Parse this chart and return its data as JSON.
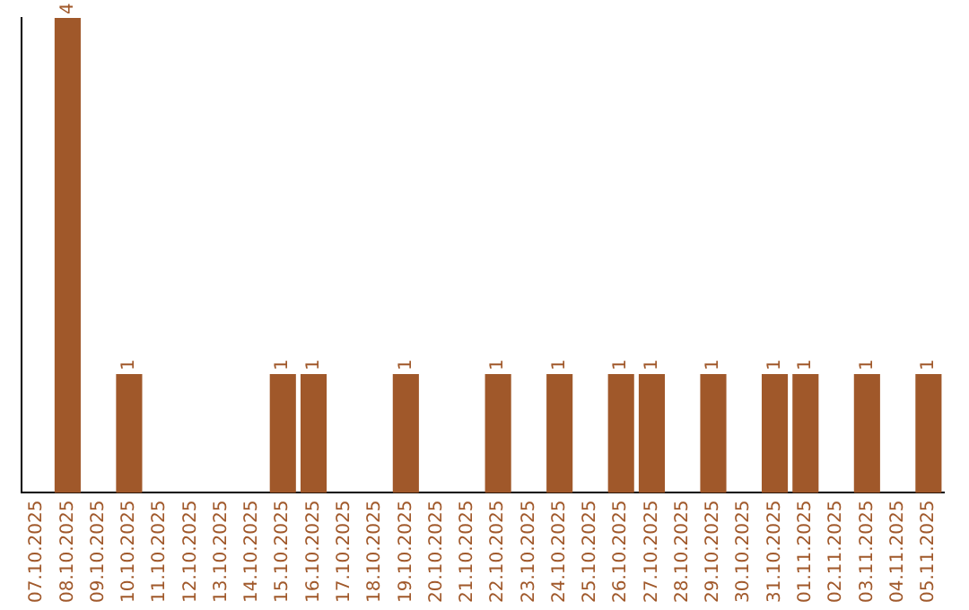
{
  "chart_data": {
    "type": "bar",
    "categories": [
      "07.10.2025",
      "08.10.2025",
      "09.10.2025",
      "10.10.2025",
      "11.10.2025",
      "12.10.2025",
      "13.10.2025",
      "14.10.2025",
      "15.10.2025",
      "16.10.2025",
      "17.10.2025",
      "18.10.2025",
      "19.10.2025",
      "20.10.2025",
      "21.10.2025",
      "22.10.2025",
      "23.10.2025",
      "24.10.2025",
      "25.10.2025",
      "26.10.2025",
      "27.10.2025",
      "28.10.2025",
      "29.10.2025",
      "30.10.2025",
      "31.10.2025",
      "01.11.2025",
      "02.11.2025",
      "03.11.2025",
      "04.11.2025",
      "05.11.2025"
    ],
    "values": [
      0,
      4,
      0,
      1,
      0,
      0,
      0,
      0,
      1,
      1,
      0,
      0,
      1,
      0,
      0,
      1,
      0,
      1,
      0,
      1,
      1,
      0,
      1,
      0,
      1,
      1,
      0,
      1,
      0,
      1
    ],
    "value_labels": [
      null,
      "4",
      null,
      "1",
      null,
      null,
      null,
      null,
      "1",
      "1",
      null,
      null,
      "1",
      null,
      null,
      "1",
      null,
      "1",
      null,
      "1",
      "1",
      null,
      "1",
      null,
      "1",
      "1",
      null,
      "1",
      null,
      "1"
    ],
    "color": "#a0582a",
    "grid": false,
    "legend": false,
    "tick_labels": "x"
  }
}
